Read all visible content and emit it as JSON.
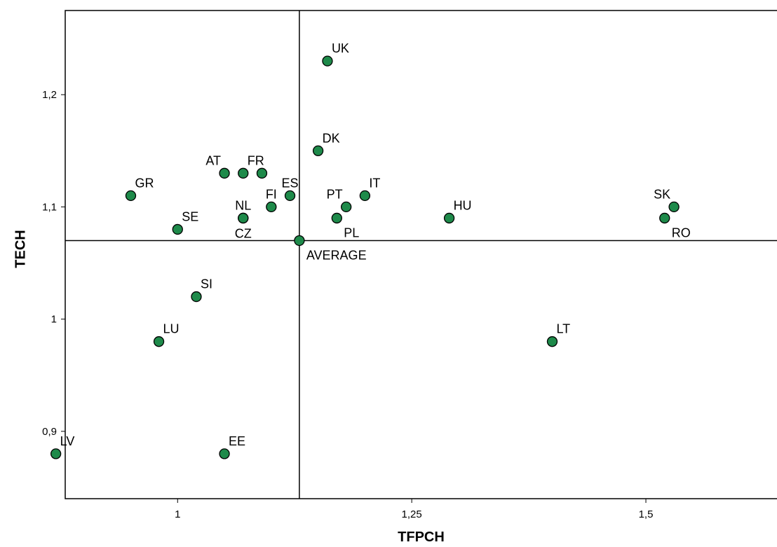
{
  "chart_data": {
    "type": "scatter",
    "xlabel": "TFPCH",
    "ylabel": "TECH",
    "xlim": [
      0.88,
      1.64
    ],
    "ylim": [
      0.84,
      1.275
    ],
    "x_ticks": [
      {
        "value": 1.0,
        "label": "1"
      },
      {
        "value": 1.25,
        "label": "1,25"
      },
      {
        "value": 1.5,
        "label": "1,5"
      }
    ],
    "y_ticks": [
      {
        "value": 0.9,
        "label": "0,9"
      },
      {
        "value": 1.0,
        "label": "1"
      },
      {
        "value": 1.1,
        "label": "1,1"
      },
      {
        "value": 1.2,
        "label": "1,2"
      }
    ],
    "reference_lines": {
      "x": 1.13,
      "y": 1.07
    },
    "marker_color": "#1e8a4a",
    "points": [
      {
        "label": "UK",
        "x": 1.16,
        "y": 1.23,
        "label_pos": "upper-right"
      },
      {
        "label": "DK",
        "x": 1.15,
        "y": 1.15,
        "label_pos": "upper-right"
      },
      {
        "label": "AT",
        "x": 1.05,
        "y": 1.13,
        "label_pos": "upper-left"
      },
      {
        "label": "FR",
        "x": 1.07,
        "y": 1.13,
        "label_pos": "upper-right"
      },
      {
        "label": "",
        "x": 1.09,
        "y": 1.13,
        "label_pos": "none"
      },
      {
        "label": "GR",
        "x": 0.95,
        "y": 1.11,
        "label_pos": "upper-right"
      },
      {
        "label": "ES",
        "x": 1.12,
        "y": 1.11,
        "label_pos": "upper"
      },
      {
        "label": "IT",
        "x": 1.2,
        "y": 1.11,
        "label_pos": "upper-right"
      },
      {
        "label": "FI",
        "x": 1.1,
        "y": 1.1,
        "label_pos": "upper"
      },
      {
        "label": "NL",
        "x": 1.07,
        "y": 1.09,
        "label_pos": "upper"
      },
      {
        "label": "PT",
        "x": 1.18,
        "y": 1.1,
        "label_pos": "upper-left"
      },
      {
        "label": "PL",
        "x": 1.17,
        "y": 1.09,
        "label_pos": "lower-right"
      },
      {
        "label": "HU",
        "x": 1.29,
        "y": 1.09,
        "label_pos": "upper-right"
      },
      {
        "label": "SK",
        "x": 1.53,
        "y": 1.1,
        "label_pos": "upper-left"
      },
      {
        "label": "RO",
        "x": 1.52,
        "y": 1.09,
        "label_pos": "lower-right"
      },
      {
        "label": "SE",
        "x": 1.0,
        "y": 1.08,
        "label_pos": "upper-right"
      },
      {
        "label": "CZ",
        "x": 1.07,
        "y": 1.09,
        "label_pos": "lower"
      },
      {
        "label": "AVERAGE",
        "x": 1.13,
        "y": 1.07,
        "label_pos": "lower-right"
      },
      {
        "label": "SI",
        "x": 1.02,
        "y": 1.02,
        "label_pos": "upper-right"
      },
      {
        "label": "LU",
        "x": 0.98,
        "y": 0.98,
        "label_pos": "upper-right"
      },
      {
        "label": "LT",
        "x": 1.4,
        "y": 0.98,
        "label_pos": "upper-right"
      },
      {
        "label": "LV",
        "x": 0.87,
        "y": 0.88,
        "label_pos": "upper-right"
      },
      {
        "label": "EE",
        "x": 1.05,
        "y": 0.88,
        "label_pos": "upper-right"
      }
    ]
  }
}
